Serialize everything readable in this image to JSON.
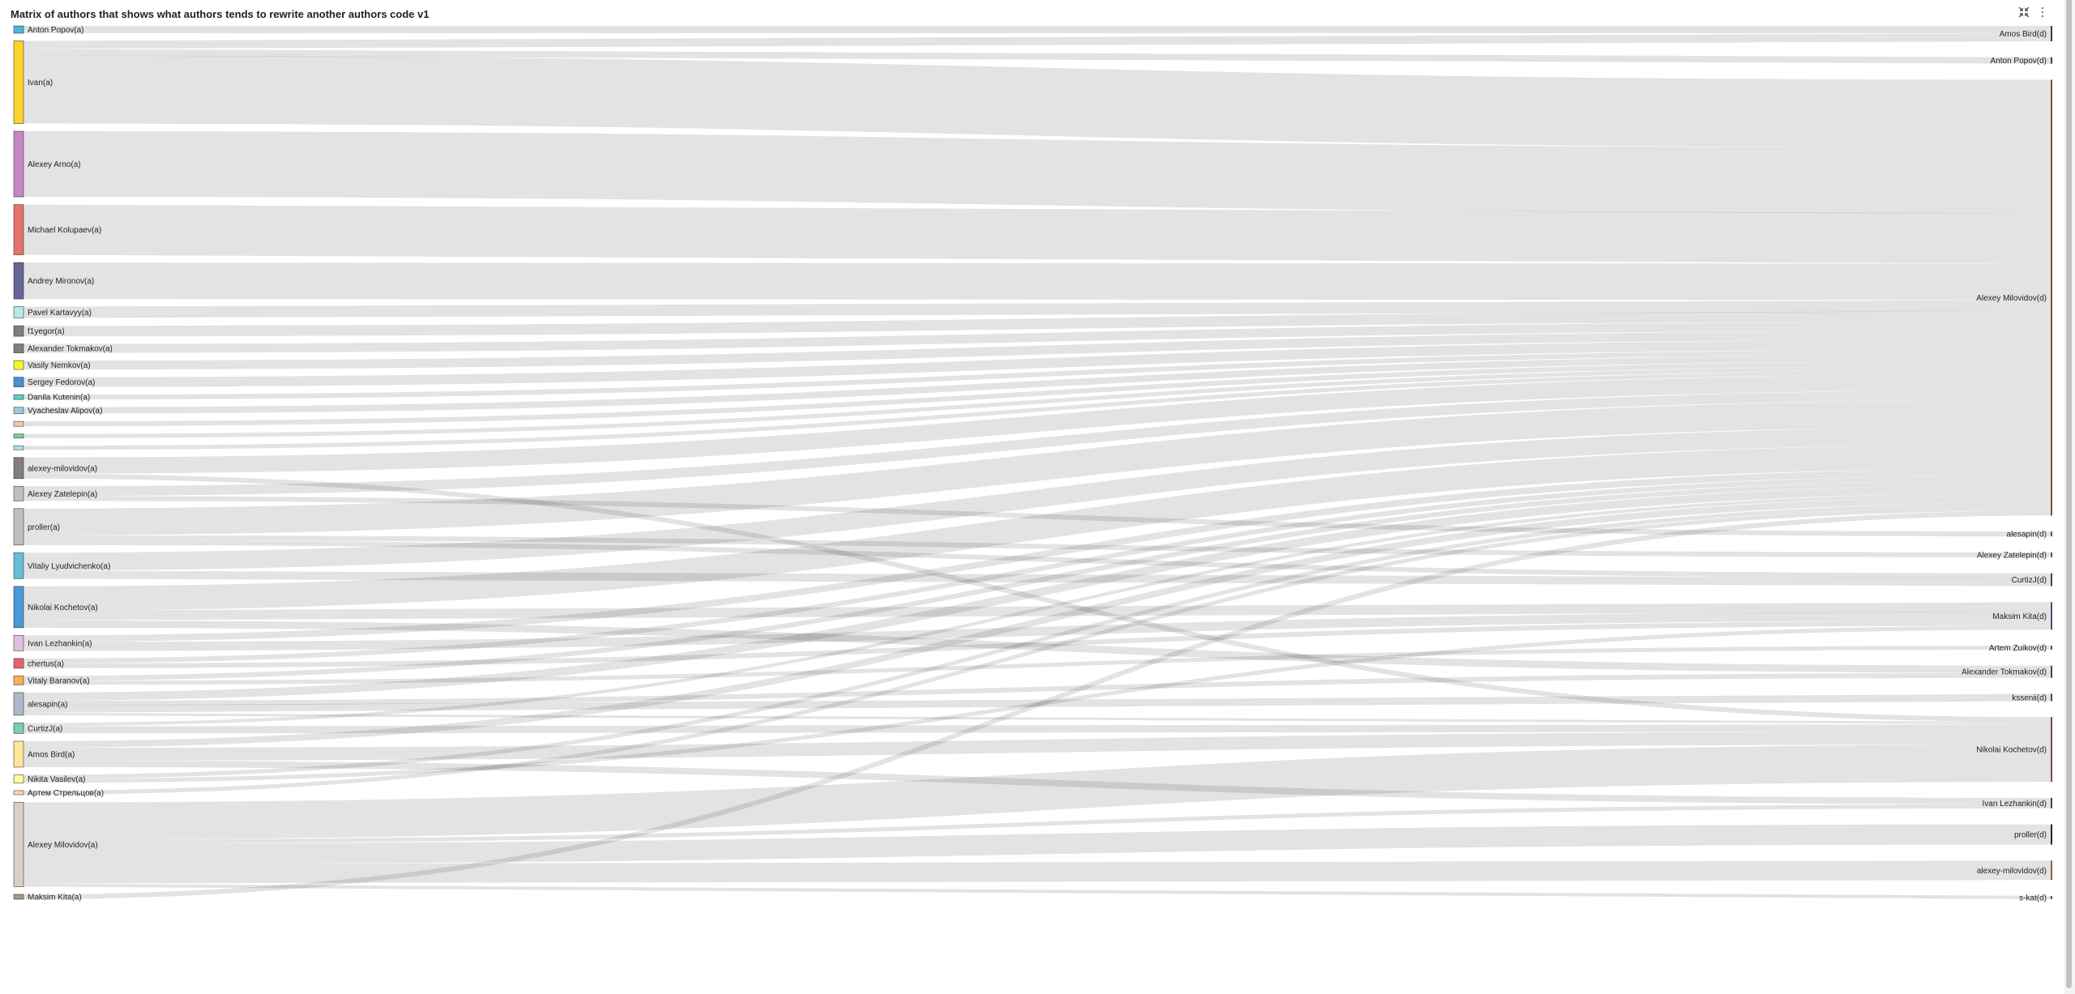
{
  "header": {
    "title": "Matrix of authors that shows what authors tends to rewrite another authors code v1",
    "icons": [
      "collapse-icon",
      "kebab-menu-icon"
    ]
  },
  "chart_data": {
    "type": "sankey",
    "title": "Matrix of authors that shows what authors tends to rewrite another authors code v1",
    "link_color": "#000000",
    "sources": [
      {
        "name": "Anton Popov(a)",
        "color": "#4ab8d4"
      },
      {
        "name": "Ivan(a)",
        "color": "#fdd22f"
      },
      {
        "name": "Alexey Arno(a)",
        "color": "#c587c4"
      },
      {
        "name": "Michael Kolupaev(a)",
        "color": "#e8736a"
      },
      {
        "name": "Andrey Mironov(a)",
        "color": "#676698"
      },
      {
        "name": "Pavel Kartavyy(a)",
        "color": "#b3e9ec"
      },
      {
        "name": "f1yegor(a)",
        "color": "#808080"
      },
      {
        "name": "Alexander Tokmakov(a)",
        "color": "#808080"
      },
      {
        "name": "Vasily Nemkov(a)",
        "color": "#f8f52f"
      },
      {
        "name": "Sergey Fedorov(a)",
        "color": "#4a8fd4"
      },
      {
        "name": "Danila Kutenin(a)",
        "color": "#55cfcb"
      },
      {
        "name": "Vyacheslav Alipov(a)",
        "color": "#9ecae1"
      },
      {
        "name": "",
        "color": "#fdc5a9"
      },
      {
        "name": "",
        "color": "#7dcfa0"
      },
      {
        "name": "",
        "color": "#aee1ea"
      },
      {
        "name": "alexey-milovidov(a)",
        "color": "#808080"
      },
      {
        "name": "Alexey Zatelepin(a)",
        "color": "#c0c0c0"
      },
      {
        "name": "proller(a)",
        "color": "#c0c0c0"
      },
      {
        "name": "Vitaliy Lyudvichenko(a)",
        "color": "#64c0d8"
      },
      {
        "name": "Nikolai Kochetov(a)",
        "color": "#4a9ad8"
      },
      {
        "name": "Ivan Lezhankin(a)",
        "color": "#e0c0e0"
      },
      {
        "name": "chertus(a)",
        "color": "#e5636f"
      },
      {
        "name": "Vitaly Baranov(a)",
        "color": "#fdac5a"
      },
      {
        "name": "alesapin(a)",
        "color": "#b0b6cc"
      },
      {
        "name": "CurtizJ(a)",
        "color": "#7acfac"
      },
      {
        "name": "Amos Bird(a)",
        "color": "#fde59a"
      },
      {
        "name": "Nikita Vasilev(a)",
        "color": "#fdfd9a"
      },
      {
        "name": "Артем Стрельцов(a)",
        "color": "#fdd8b0"
      },
      {
        "name": "Alexey Milovidov(a)",
        "color": "#d8cfc5"
      },
      {
        "name": "Maksim Kita(a)",
        "color": "#a89a85"
      }
    ],
    "targets": [
      {
        "name": "Amos Bird(d)",
        "color": "#333a5a"
      },
      {
        "name": "Anton Popov(d)",
        "color": "#4b3a6a"
      },
      {
        "name": "Alexey Milovidov(d)",
        "color": "#8b4a2a"
      },
      {
        "name": "alesapin(d)",
        "color": "#555555"
      },
      {
        "name": "Alexey Zatelepin(d)",
        "color": "#555555"
      },
      {
        "name": "CurtizJ(d)",
        "color": "#444444"
      },
      {
        "name": "Maksim Kita(d)",
        "color": "#5a4a6a"
      },
      {
        "name": "Artem Zuikov(d)",
        "color": "#555555"
      },
      {
        "name": "Alexander Tokmakov(d)",
        "color": "#444444"
      },
      {
        "name": "kssenii(d)",
        "color": "#444444"
      },
      {
        "name": "Nikolai Kochetov(d)",
        "color": "#7a4a5a"
      },
      {
        "name": "Ivan Lezhankin(d)",
        "color": "#444444"
      },
      {
        "name": "proller(d)",
        "color": "#222244"
      },
      {
        "name": "alexey-milovidov(d)",
        "color": "#8b6a2a"
      },
      {
        "name": "s-kat(d)",
        "color": "#445566"
      }
    ],
    "links": [
      [
        "Anton Popov(a)",
        "Amos Bird(d)",
        9
      ],
      [
        "Ivan(a)",
        "Amos Bird(d)",
        10
      ],
      [
        "Ivan(a)",
        "Anton Popov(d)",
        8
      ],
      [
        "Ivan(a)",
        "Alexey Milovidov(d)",
        84
      ],
      [
        "Alexey Arno(a)",
        "Alexey Milovidov(d)",
        81
      ],
      [
        "Michael Kolupaev(a)",
        "Alexey Milovidov(d)",
        62
      ],
      [
        "Andrey Mironov(a)",
        "Alexey Milovidov(d)",
        45
      ],
      [
        "Pavel Kartavyy(a)",
        "Alexey Milovidov(d)",
        14
      ],
      [
        "f1yegor(a)",
        "Alexey Milovidov(d)",
        13
      ],
      [
        "Alexander Tokmakov(a)",
        "Alexey Milovidov(d)",
        11
      ],
      [
        "Vasily Nemkov(a)",
        "Alexey Milovidov(d)",
        11
      ],
      [
        "Sergey Fedorov(a)",
        "Alexey Milovidov(d)",
        12
      ],
      [
        "Danila Kutenin(a)",
        "Alexey Milovidov(d)",
        6
      ],
      [
        "Vyacheslav Alipov(a)",
        "Alexey Milovidov(d)",
        8
      ],
      [
        12,
        "Alexey Milovidov(d)",
        6
      ],
      [
        13,
        "Alexey Milovidov(d)",
        5
      ],
      [
        14,
        "Alexey Milovidov(d)",
        5
      ],
      [
        "alexey-milovidov(a)",
        "Alexey Milovidov(d)",
        20
      ],
      [
        "alexey-milovidov(a)",
        "Nikolai Kochetov(d)",
        6
      ],
      [
        "Alexey Zatelepin(a)",
        "Alexey Milovidov(d)",
        12
      ],
      [
        "Alexey Zatelepin(a)",
        "alesapin(d)",
        6
      ],
      [
        "proller(a)",
        "Alexey Milovidov(d)",
        33
      ],
      [
        "proller(a)",
        "Alexey Zatelepin(d)",
        6
      ],
      [
        "proller(a)",
        "CurtizJ(d)",
        6
      ],
      [
        "Vitaliy Lyudvichenko(a)",
        "Alexey Milovidov(d)",
        22
      ],
      [
        "Vitaliy Lyudvichenko(a)",
        "CurtizJ(d)",
        10
      ],
      [
        "Nikolai Kochetov(a)",
        "Alexey Milovidov(d)",
        30
      ],
      [
        "Nikolai Kochetov(a)",
        "Maksim Kita(d)",
        12
      ],
      [
        "Nikolai Kochetov(a)",
        "Alexander Tokmakov(d)",
        9
      ],
      [
        "Ivan Lezhankin(a)",
        "Alexey Milovidov(d)",
        8
      ],
      [
        "Ivan Lezhankin(a)",
        "Maksim Kita(d)",
        11
      ],
      [
        "chertus(a)",
        "Alexey Milovidov(d)",
        6
      ],
      [
        "chertus(a)",
        "Maksim Kita(d)",
        6
      ],
      [
        "Vitaly Baranov(a)",
        "Alexey Milovidov(d)",
        6
      ],
      [
        "Vitaly Baranov(a)",
        "Artem Zuikov(d)",
        5
      ],
      [
        "alesapin(a)",
        "Alexey Milovidov(d)",
        10
      ],
      [
        "alesapin(a)",
        "Alexander Tokmakov(d)",
        6
      ],
      [
        "alesapin(a)",
        "kssenii(d)",
        9
      ],
      [
        "alesapin(a)",
        "Nikolai Kochetov(d)",
        3
      ],
      [
        "CurtizJ(a)",
        "Alexey Milovidov(d)",
        4
      ],
      [
        "CurtizJ(a)",
        "Nikolai Kochetov(d)",
        9
      ],
      [
        "Amos Bird(a)",
        "Alexey Milovidov(d)",
        8
      ],
      [
        "Amos Bird(a)",
        "Nikolai Kochetov(d)",
        16
      ],
      [
        "Amos Bird(a)",
        "Ivan Lezhankin(d)",
        8
      ],
      [
        "Nikita Vasilev(a)",
        "Alexey Milovidov(d)",
        5
      ],
      [
        "Nikita Vasilev(a)",
        "Maksim Kita(d)",
        5
      ],
      [
        "Артем Стрельцов(a)",
        "Alexey Milovidov(d)",
        5
      ],
      [
        "Alexey Milovidov(a)",
        "Nikolai Kochetov(d)",
        46
      ],
      [
        "Alexey Milovidov(a)",
        "Ivan Lezhankin(d)",
        5
      ],
      [
        "Alexey Milovidov(a)",
        "proller(d)",
        25
      ],
      [
        "Alexey Milovidov(a)",
        "alexey-milovidov(d)",
        24
      ],
      [
        "Alexey Milovidov(a)",
        "s-kat(d)",
        4
      ],
      [
        "Maksim Kita(a)",
        "Alexey Milovidov(d)",
        6
      ]
    ]
  }
}
